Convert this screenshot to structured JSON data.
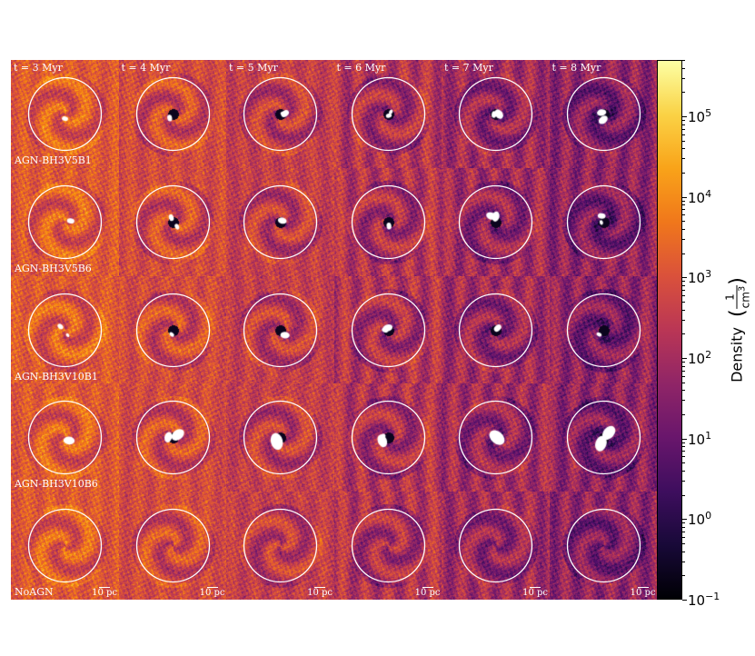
{
  "figure": {
    "columns": [
      "t = 3 Myr",
      "t = 4 Myr",
      "t = 5 Myr",
      "t = 6 Myr",
      "t = 7 Myr",
      "t = 8 Myr"
    ],
    "rows": [
      "AGN-BH3V5B1",
      "AGN-BH3V5B6",
      "AGN-BH3V10B1",
      "AGN-BH3V10B6",
      "NoAGN"
    ],
    "scale_bar_label": "10 pc",
    "colormap": "inferno",
    "circle_color": "#ffffff"
  },
  "colorbar": {
    "label": "Density",
    "unit_numerator": "1",
    "unit_denominator": "cm",
    "unit_denominator_exponent": "3",
    "scale": "log",
    "range": [
      0.1,
      500000
    ],
    "ticks": [
      {
        "base": "10",
        "exp": "5",
        "value": 100000
      },
      {
        "base": "10",
        "exp": "4",
        "value": 10000
      },
      {
        "base": "10",
        "exp": "3",
        "value": 1000
      },
      {
        "base": "10",
        "exp": "2",
        "value": 100
      },
      {
        "base": "10",
        "exp": "1",
        "value": 10
      },
      {
        "base": "10",
        "exp": "0",
        "value": 1
      },
      {
        "base": "10",
        "exp": "−1",
        "value": 0.1
      }
    ]
  }
}
